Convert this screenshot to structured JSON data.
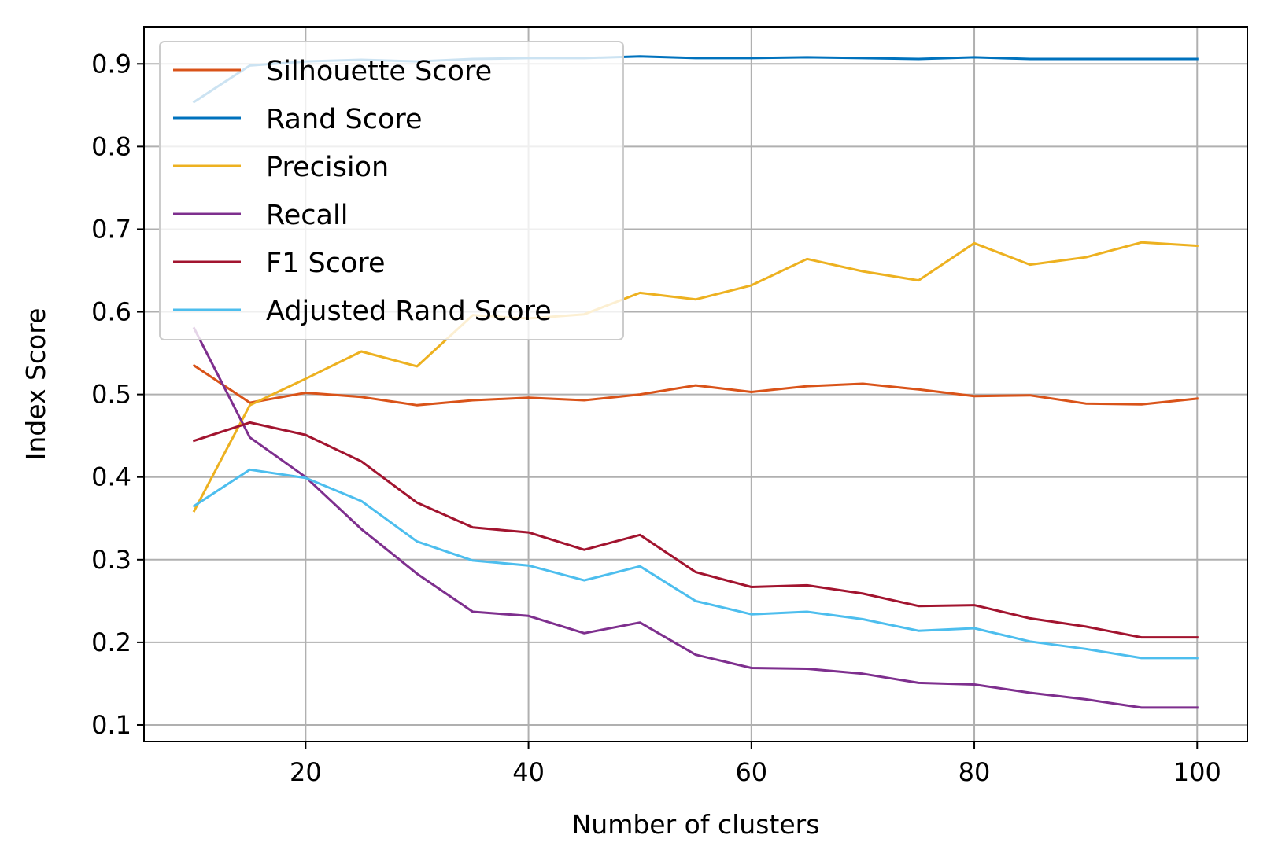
{
  "chart_data": {
    "type": "line",
    "xlabel": "Number of clusters",
    "ylabel": "Index Score",
    "xlim": [
      5.5,
      104.5
    ],
    "ylim": [
      0.08,
      0.945
    ],
    "xticks": [
      20,
      40,
      60,
      80,
      100
    ],
    "yticks": [
      0.1,
      0.2,
      0.3,
      0.4,
      0.5,
      0.6,
      0.7,
      0.8,
      0.9
    ],
    "xtick_labels": [
      "20",
      "40",
      "60",
      "80",
      "100"
    ],
    "ytick_labels": [
      "0.1",
      "0.2",
      "0.3",
      "0.4",
      "0.5",
      "0.6",
      "0.7",
      "0.8",
      "0.9"
    ],
    "grid": true,
    "legend_position": "upper-left",
    "x": [
      10,
      15,
      20,
      25,
      30,
      35,
      40,
      45,
      50,
      55,
      60,
      65,
      70,
      75,
      80,
      85,
      90,
      95,
      100
    ],
    "series": [
      {
        "name": "Silhouette Score",
        "color": "#d95319",
        "values": [
          0.535,
          0.49,
          0.502,
          0.497,
          0.487,
          0.493,
          0.496,
          0.493,
          0.5,
          0.511,
          0.503,
          0.51,
          0.513,
          0.506,
          0.498,
          0.499,
          0.489,
          0.488,
          0.495
        ]
      },
      {
        "name": "Rand Score",
        "color": "#0072bd",
        "values": [
          0.854,
          0.898,
          0.903,
          0.905,
          0.903,
          0.906,
          0.907,
          0.907,
          0.909,
          0.907,
          0.907,
          0.908,
          0.907,
          0.906,
          0.908,
          0.906,
          0.906,
          0.906,
          0.906
        ]
      },
      {
        "name": "Precision",
        "color": "#edb120",
        "values": [
          0.359,
          0.487,
          0.519,
          0.552,
          0.534,
          0.596,
          0.592,
          0.597,
          0.623,
          0.615,
          0.632,
          0.664,
          0.649,
          0.638,
          0.683,
          0.657,
          0.666,
          0.684,
          0.68
        ]
      },
      {
        "name": "Recall",
        "color": "#7e2f8e",
        "values": [
          0.58,
          0.448,
          0.4,
          0.337,
          0.283,
          0.237,
          0.232,
          0.211,
          0.224,
          0.185,
          0.169,
          0.168,
          0.162,
          0.151,
          0.149,
          0.139,
          0.131,
          0.121,
          0.121
        ]
      },
      {
        "name": "F1 Score",
        "color": "#a2142f",
        "values": [
          0.444,
          0.466,
          0.451,
          0.419,
          0.369,
          0.339,
          0.333,
          0.312,
          0.33,
          0.285,
          0.267,
          0.269,
          0.259,
          0.244,
          0.245,
          0.229,
          0.219,
          0.206,
          0.206
        ]
      },
      {
        "name": "Adjusted Rand Score",
        "color": "#4dbeee",
        "values": [
          0.365,
          0.409,
          0.399,
          0.371,
          0.322,
          0.299,
          0.293,
          0.275,
          0.292,
          0.25,
          0.234,
          0.237,
          0.228,
          0.214,
          0.217,
          0.201,
          0.192,
          0.181,
          0.181
        ]
      }
    ]
  }
}
